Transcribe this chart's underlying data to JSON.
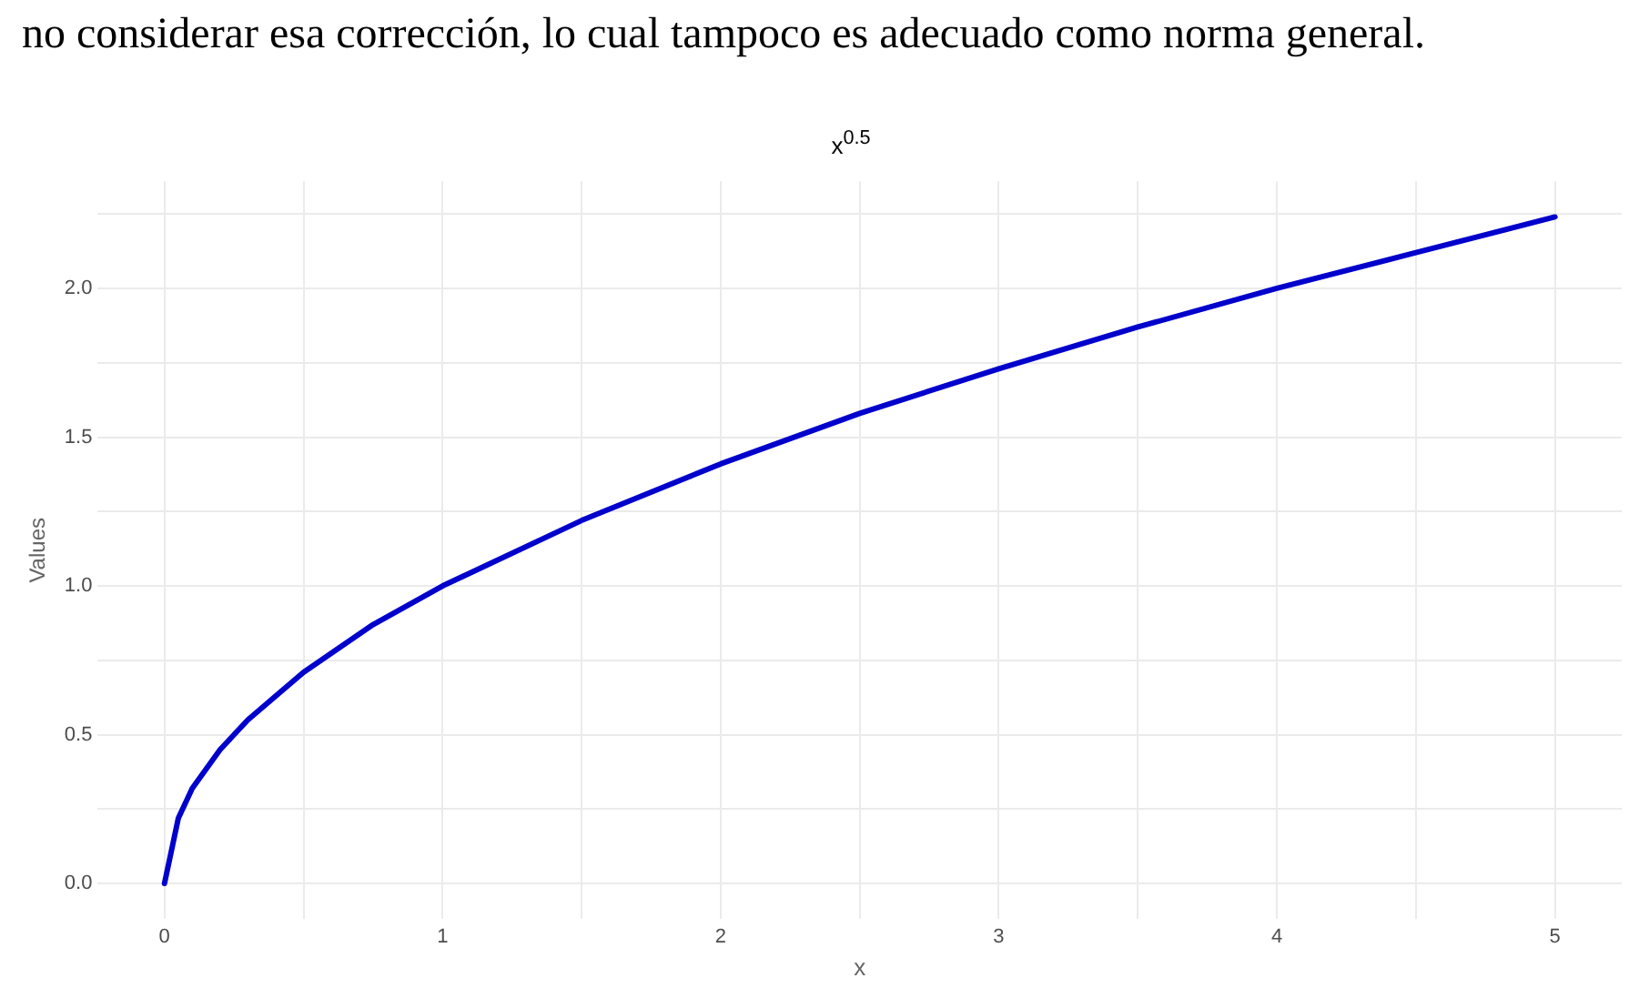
{
  "chart_data": {
    "type": "line",
    "title": "x$^{0.5}$",
    "xlabel": "x",
    "ylabel": "Values",
    "annotations": [
      "no considerar esa corrección, lo cual tampoco es adecuado como norma general."
    ],
    "series": [
      {
        "color": "#0000cd",
        "x": [
          0,
          0.05,
          0.1,
          0.2,
          0.3,
          0.5,
          0.75,
          1,
          1.5,
          2,
          2.5,
          3,
          3.5,
          4,
          4.5,
          5
        ],
        "values": [
          0,
          0.22,
          0.32,
          0.45,
          0.55,
          0.71,
          0.87,
          1,
          1.22,
          1.41,
          1.58,
          1.73,
          1.87,
          2,
          2.12,
          2.24
        ]
      }
    ],
    "xlim": [
      -0.24,
      5.24
    ],
    "ylim": [
      -0.12,
      2.36
    ],
    "xticks": [
      0,
      {
        "value": 0.5,
        "label": null
      },
      1,
      {
        "value": 1.5,
        "label": null
      },
      2,
      {
        "value": 2.5,
        "label": null
      },
      3,
      {
        "value": 3.5,
        "label": null
      },
      4,
      {
        "value": 4.5,
        "label": null
      },
      5
    ],
    "yticks": [
      {
        "value": 0,
        "label": "0.0"
      },
      {
        "value": 0.25,
        "label": null
      },
      {
        "value": 0.5,
        "label": "0.5"
      },
      {
        "value": 0.75,
        "label": null
      },
      {
        "value": 1,
        "label": "1.0"
      },
      {
        "value": 1.25,
        "label": null
      },
      {
        "value": 1.5,
        "label": "1.5"
      },
      {
        "value": 1.75,
        "label": null
      },
      {
        "value": 2,
        "label": "2.0"
      },
      {
        "value": 2.25,
        "label": null
      }
    ],
    "grid": true,
    "legend": false,
    "marker": "none",
    "line_style": "solid"
  }
}
